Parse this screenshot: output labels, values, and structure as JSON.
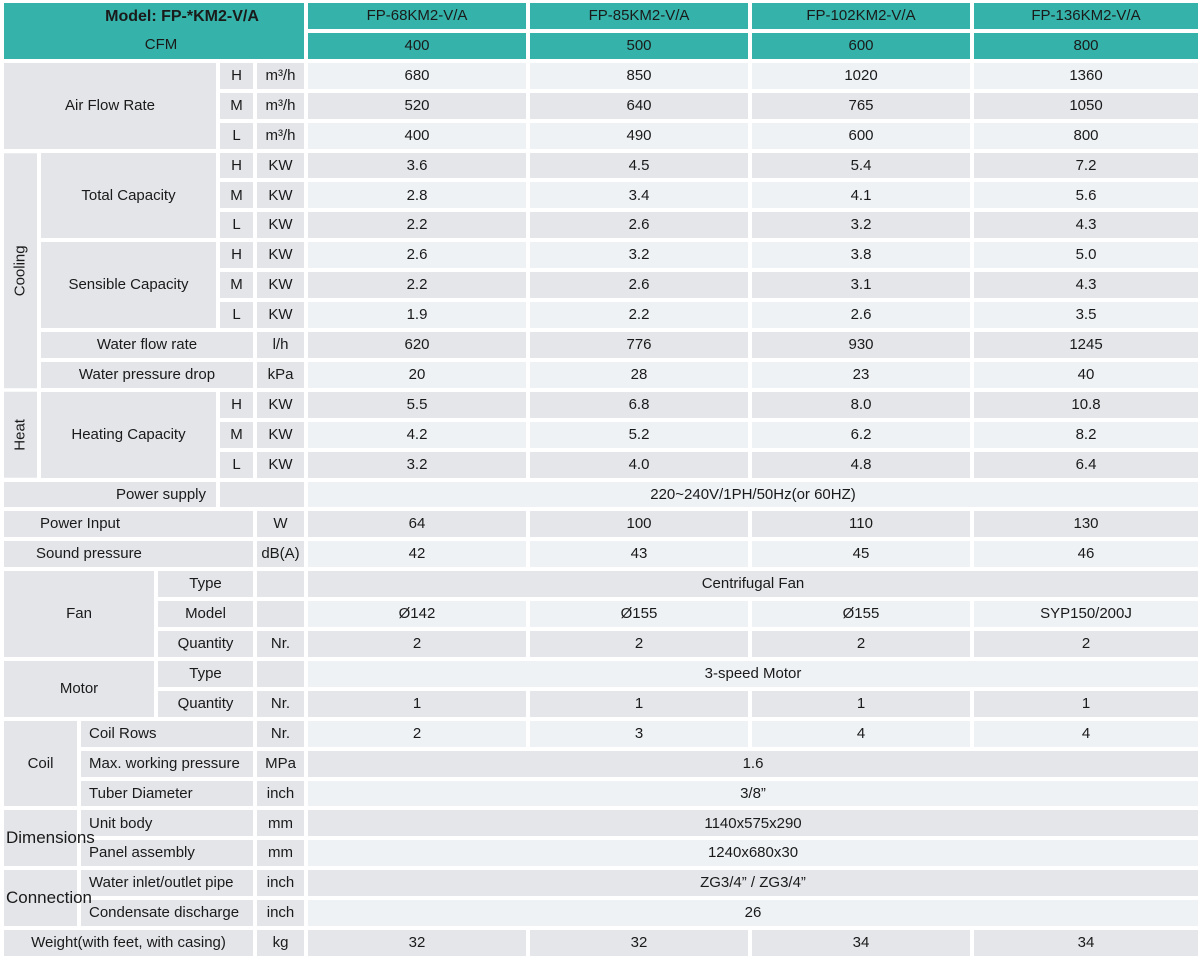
{
  "title_block": {
    "model": "Model: FP-*KM2-V/A",
    "cfm": "CFM"
  },
  "models": [
    "FP-68KM2-V/A",
    "FP-85KM2-V/A",
    "FP-102KM2-V/A",
    "FP-136KM2-V/A"
  ],
  "cfm": [
    "400",
    "500",
    "600",
    "800"
  ],
  "labels": {
    "air_flow": "Air Flow Rate",
    "cooling": "Cooling",
    "total_capacity": "Total Capacity",
    "sensible_capacity": "Sensible Capacity",
    "water_flow_rate": "Water flow rate",
    "water_pressure_drop": "Water pressure drop",
    "heat": "Heat",
    "heating_capacity": "Heating Capacity",
    "power_supply": "Power supply",
    "power_input": "Power Input",
    "sound_pressure": "Sound pressure",
    "fan": "Fan",
    "motor": "Motor",
    "type": "Type",
    "model": "Model",
    "quantity": "Quantity",
    "coil": "Coil",
    "coil_rows": "Coil Rows",
    "max_working_pressure": "Max. working pressure",
    "tuber_diameter": "Tuber Diameter",
    "dimensions": "Dimensions",
    "unit_body": "Unit body",
    "panel_assembly": "Panel assembly",
    "connection": "Connection",
    "water_inlet_outlet": "Water inlet/outlet pipe",
    "condensate_discharge": "Condensate discharge",
    "weight": "Weight(with feet, with casing)",
    "h": "H",
    "m": "M",
    "l": "L"
  },
  "units": {
    "m3h": "m³/h",
    "kw": "KW",
    "lh": "l/h",
    "kpa": "kPa",
    "w": "W",
    "dba": "dB(A)",
    "nr": "Nr.",
    "mpa": "MPa",
    "inch": "inch",
    "mm": "mm",
    "kg": "kg"
  },
  "values": {
    "air_h": [
      "680",
      "850",
      "1020",
      "1360"
    ],
    "air_m": [
      "520",
      "640",
      "765",
      "1050"
    ],
    "air_l": [
      "400",
      "490",
      "600",
      "800"
    ],
    "total_h": [
      "3.6",
      "4.5",
      "5.4",
      "7.2"
    ],
    "total_m": [
      "2.8",
      "3.4",
      "4.1",
      "5.6"
    ],
    "total_l": [
      "2.2",
      "2.6",
      "3.2",
      "4.3"
    ],
    "sensible_h": [
      "2.6",
      "3.2",
      "3.8",
      "5.0"
    ],
    "sensible_m": [
      "2.2",
      "2.6",
      "3.1",
      "4.3"
    ],
    "sensible_l": [
      "1.9",
      "2.2",
      "2.6",
      "3.5"
    ],
    "water_flow": [
      "620",
      "776",
      "930",
      "1245"
    ],
    "water_drop": [
      "20",
      "28",
      "23",
      "40"
    ],
    "heating_h": [
      "5.5",
      "6.8",
      "8.0",
      "10.8"
    ],
    "heating_m": [
      "4.2",
      "5.2",
      "6.2",
      "8.2"
    ],
    "heating_l": [
      "3.2",
      "4.0",
      "4.8",
      "6.4"
    ],
    "power_supply": "220~240V/1PH/50Hz(or 60HZ)",
    "power_input": [
      "64",
      "100",
      "110",
      "130"
    ],
    "sound_pressure": [
      "42",
      "43",
      "45",
      "46"
    ],
    "fan_type": "Centrifugal Fan",
    "fan_model": [
      "Ø142",
      "Ø155",
      "Ø155",
      "SYP150/200J"
    ],
    "fan_qty": [
      "2",
      "2",
      "2",
      "2"
    ],
    "motor_type": "3-speed Motor",
    "motor_qty": [
      "1",
      "1",
      "1",
      "1"
    ],
    "coil_rows": [
      "2",
      "3",
      "4",
      "4"
    ],
    "max_pressure": "1.6",
    "tuber_diameter": "3/8”",
    "unit_body": "1140x575x290",
    "panel_assembly": "1240x680x30",
    "water_pipe": "ZG3/4” / ZG3/4”",
    "condensate": "26",
    "weight": [
      "32",
      "32",
      "34",
      "34"
    ]
  },
  "colors": {
    "teal": "#35B2A9",
    "label_bg": "#E3E5E9",
    "row_light": "#EEF2F5",
    "row_dark": "#E4E6EA",
    "text": "#1A1A1A"
  }
}
